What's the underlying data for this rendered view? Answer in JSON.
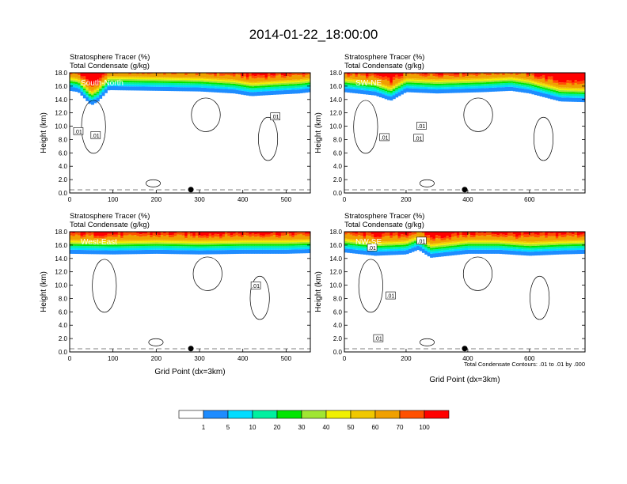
{
  "figure": {
    "title": "2014-01-22_18:00:00",
    "contour_note": "Total Condensate Contours: .01 to .01 by .000"
  },
  "colors": {
    "background": "#ffffff",
    "contour": "#000000",
    "dot": "#000000"
  },
  "chart_data": [
    {
      "type": "heatmap",
      "panel": "South-North",
      "title": "Stratosphere Tracer   (%)",
      "subtitle": "Total Condensate   (g/kg)",
      "xlabel": "",
      "ylabel": "Height (km)",
      "xlim": [
        0,
        556
      ],
      "ylim": [
        0,
        18
      ],
      "xticks": [
        0,
        100,
        200,
        300,
        400,
        500
      ],
      "yticks": [
        "0.0",
        "2.0",
        "4.0",
        "6.0",
        "8.0",
        "10.0",
        "12.0",
        "14.0",
        "16.0",
        "18.0"
      ],
      "surface_point_x": 280,
      "tropopause_profile": [
        [
          0,
          16.2
        ],
        [
          20,
          16.0
        ],
        [
          50,
          14.0
        ],
        [
          65,
          14.6
        ],
        [
          90,
          16.3
        ],
        [
          200,
          16.2
        ],
        [
          300,
          16.1
        ],
        [
          380,
          15.8
        ],
        [
          420,
          15.4
        ],
        [
          470,
          15.6
        ],
        [
          530,
          15.8
        ],
        [
          556,
          16.0
        ]
      ],
      "contour_labels": [
        {
          "text": ".01",
          "x": 20,
          "y": 9.2
        },
        {
          "text": ".01",
          "x": 60,
          "y": 8.6
        },
        {
          "text": ".01",
          "x": 475,
          "y": 11.4
        }
      ]
    },
    {
      "type": "heatmap",
      "panel": "SW-NE",
      "title": "Stratosphere Tracer   (%)",
      "subtitle": "Total Condensate   (g/kg)",
      "xlabel": "",
      "ylabel": "Height (km)",
      "xlim": [
        0,
        780
      ],
      "ylim": [
        0,
        18
      ],
      "xticks": [
        0,
        200,
        400,
        600
      ],
      "yticks": [
        "0.0",
        "2.0",
        "4.0",
        "6.0",
        "8.0",
        "10.0",
        "12.0",
        "14.0",
        "16.0",
        "18.0"
      ],
      "surface_point_x": 390,
      "tropopause_profile": [
        [
          0,
          16.0
        ],
        [
          100,
          15.5
        ],
        [
          150,
          14.7
        ],
        [
          200,
          16.0
        ],
        [
          300,
          15.8
        ],
        [
          450,
          16.0
        ],
        [
          540,
          16.2
        ],
        [
          600,
          15.8
        ],
        [
          700,
          14.6
        ],
        [
          780,
          14.5
        ]
      ],
      "contour_labels": [
        {
          "text": ".01",
          "x": 130,
          "y": 8.3
        },
        {
          "text": ".01",
          "x": 250,
          "y": 10.0
        },
        {
          "text": ".01",
          "x": 240,
          "y": 8.2
        }
      ]
    },
    {
      "type": "heatmap",
      "panel": "West-East",
      "title": "Stratosphere Tracer   (%)",
      "subtitle": "Total Condensate   (g/kg)",
      "xlabel": "Grid Point (dx=3km)",
      "ylabel": "Height (km)",
      "xlim": [
        0,
        556
      ],
      "ylim": [
        0,
        18
      ],
      "xticks": [
        0,
        100,
        200,
        300,
        400,
        500
      ],
      "yticks": [
        "0.0",
        "2.0",
        "4.0",
        "6.0",
        "8.0",
        "10.0",
        "12.0",
        "14.0",
        "16.0",
        "18.0"
      ],
      "surface_point_x": 280,
      "tropopause_profile": [
        [
          0,
          15.6
        ],
        [
          100,
          15.5
        ],
        [
          200,
          15.6
        ],
        [
          300,
          15.5
        ],
        [
          400,
          15.6
        ],
        [
          500,
          15.6
        ],
        [
          556,
          15.7
        ]
      ],
      "contour_labels": [
        {
          "text": ".01",
          "x": 430,
          "y": 9.9
        }
      ]
    },
    {
      "type": "heatmap",
      "panel": "NW-SE",
      "title": "Stratosphere Tracer   (%)",
      "subtitle": "Total Condensate   (g/kg)",
      "xlabel": "Grid Point (dx=3km)",
      "ylabel": "Height (km)",
      "xlim": [
        0,
        780
      ],
      "ylim": [
        0,
        18
      ],
      "xticks": [
        0,
        200,
        400,
        600
      ],
      "yticks": [
        "0.0",
        "2.0",
        "4.0",
        "6.0",
        "8.0",
        "10.0",
        "12.0",
        "14.0",
        "16.0",
        "18.0"
      ],
      "surface_point_x": 390,
      "tropopause_profile": [
        [
          0,
          15.8
        ],
        [
          100,
          15.3
        ],
        [
          200,
          15.5
        ],
        [
          240,
          16.2
        ],
        [
          280,
          15.0
        ],
        [
          400,
          15.6
        ],
        [
          500,
          15.6
        ],
        [
          600,
          15.3
        ],
        [
          700,
          15.5
        ],
        [
          780,
          15.6
        ]
      ],
      "contour_labels": [
        {
          "text": ".01",
          "x": 90,
          "y": 15.6
        },
        {
          "text": ".01",
          "x": 250,
          "y": 16.6
        },
        {
          "text": ".01",
          "x": 150,
          "y": 8.4
        },
        {
          "text": ".01",
          "x": 110,
          "y": 2.0
        }
      ]
    }
  ],
  "colorbar": {
    "colors": [
      "#ffffff",
      "#1e8cff",
      "#00dcff",
      "#00f0a0",
      "#00e600",
      "#a0e632",
      "#f0f000",
      "#f0c800",
      "#f0a000",
      "#ff5000",
      "#ff0000"
    ],
    "labels": [
      "1",
      "5",
      "10",
      "20",
      "30",
      "40",
      "50",
      "60",
      "70",
      "100"
    ]
  }
}
